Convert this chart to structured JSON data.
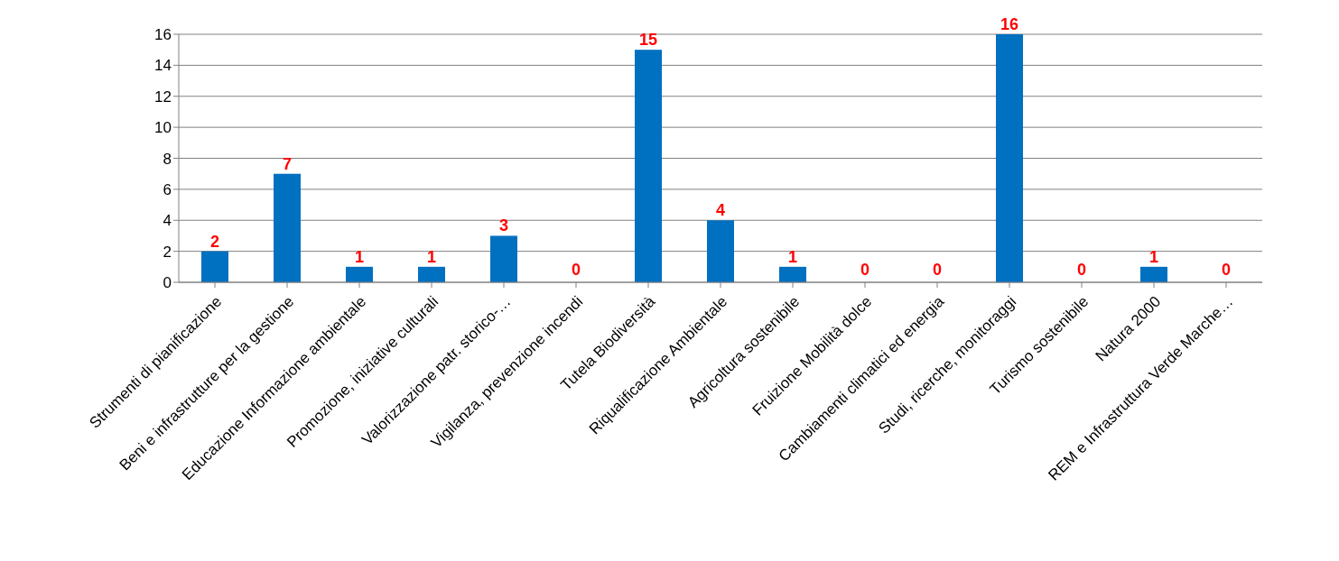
{
  "chart_data": {
    "type": "bar",
    "categories": [
      "Strumenti di pianificazione",
      "Beni e infrastrutture per la gestione",
      "Educazione Informazione ambientale",
      "Promozione, iniziative culturali",
      "Valorizzazione patr. storico-…",
      "Vigilanza, prevenzione incendi",
      "Tutela Biodiversità",
      "Riqualificazione Ambientale",
      "Agricoltura sostenibile",
      "Fruizione Mobilità dolce",
      "Cambiamenti climatici ed energia",
      "Studi, ricerche, monitoraggi",
      "Turismo sostenibile",
      "Natura 2000",
      "REM e Infrastruttura Verde Marche…"
    ],
    "values": [
      2,
      7,
      1,
      1,
      3,
      0,
      15,
      4,
      1,
      0,
      0,
      16,
      0,
      1,
      0
    ],
    "color": "#0070c0",
    "ylim": [
      0,
      16
    ],
    "yticks": [
      0,
      2,
      4,
      6,
      8,
      10,
      12,
      14,
      16
    ],
    "grid": "y",
    "data_labels": true
  }
}
